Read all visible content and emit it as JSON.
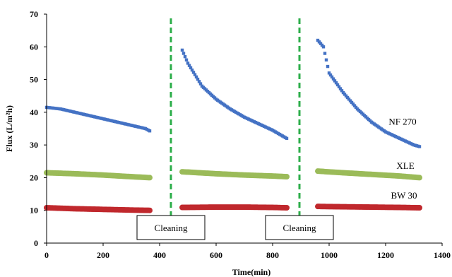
{
  "chart_data": {
    "type": "scatter",
    "title": "",
    "xlabel": "Time(min)",
    "ylabel": "Flux (L/m²h)",
    "xlim": [
      0,
      1400
    ],
    "ylim": [
      0,
      70
    ],
    "x_ticks": [
      0,
      200,
      400,
      600,
      800,
      1000,
      1200,
      1400
    ],
    "y_ticks": [
      0,
      10,
      20,
      30,
      40,
      50,
      60,
      70
    ],
    "grid": false,
    "legend": "none",
    "series": [
      {
        "name": "NF 270",
        "color": "#4472C4",
        "marker": "square",
        "segments": [
          {
            "x": [
              0,
              50,
              100,
              150,
              200,
              250,
              300,
              350,
              365
            ],
            "y": [
              41.5,
              41,
              40,
              39,
              38,
              37,
              36,
              35,
              34.3
            ]
          },
          {
            "x": [
              480,
              500,
              550,
              600,
              650,
              700,
              750,
              800,
              830,
              850
            ],
            "y": [
              59,
              55,
              48,
              44,
              41,
              38.5,
              36.5,
              34.5,
              33,
              32
            ]
          },
          {
            "x": [
              960,
              980,
              1000,
              1050,
              1100,
              1150,
              1200,
              1250,
              1300,
              1320
            ],
            "y": [
              62,
              60,
              52,
              46,
              41,
              37,
              34,
              32,
              30,
              29.5
            ]
          }
        ]
      },
      {
        "name": "XLE",
        "color": "#9BBB59",
        "marker": "circle",
        "segments": [
          {
            "x": [
              0,
              100,
              200,
              300,
              365
            ],
            "y": [
              21.5,
              21.2,
              20.8,
              20.3,
              20
            ]
          },
          {
            "x": [
              480,
              600,
              700,
              800,
              850
            ],
            "y": [
              21.8,
              21.2,
              20.8,
              20.5,
              20.3
            ]
          },
          {
            "x": [
              960,
              1050,
              1150,
              1250,
              1320
            ],
            "y": [
              22,
              21.5,
              21,
              20.5,
              20
            ]
          }
        ]
      },
      {
        "name": "BW 30",
        "color": "#C0282D",
        "marker": "circle",
        "segments": [
          {
            "x": [
              0,
              100,
              200,
              300,
              365
            ],
            "y": [
              10.8,
              10.5,
              10.3,
              10.1,
              10
            ]
          },
          {
            "x": [
              480,
              600,
              700,
              800,
              850
            ],
            "y": [
              10.9,
              11,
              11,
              10.9,
              10.8
            ]
          },
          {
            "x": [
              960,
              1050,
              1150,
              1250,
              1320
            ],
            "y": [
              11.2,
              11.1,
              11,
              10.9,
              10.8
            ]
          }
        ]
      }
    ],
    "annotations": [
      {
        "text": "NF 270",
        "x": 1260,
        "y": 37
      },
      {
        "text": "XLE",
        "x": 1270,
        "y": 23.5
      },
      {
        "text": "BW 30",
        "x": 1265,
        "y": 14.5
      }
    ],
    "events": [
      {
        "x": 440,
        "label": "Cleaning",
        "color": "#2CAE4A"
      },
      {
        "x": 895,
        "label": "Cleaning",
        "color": "#2CAE4A"
      }
    ]
  }
}
